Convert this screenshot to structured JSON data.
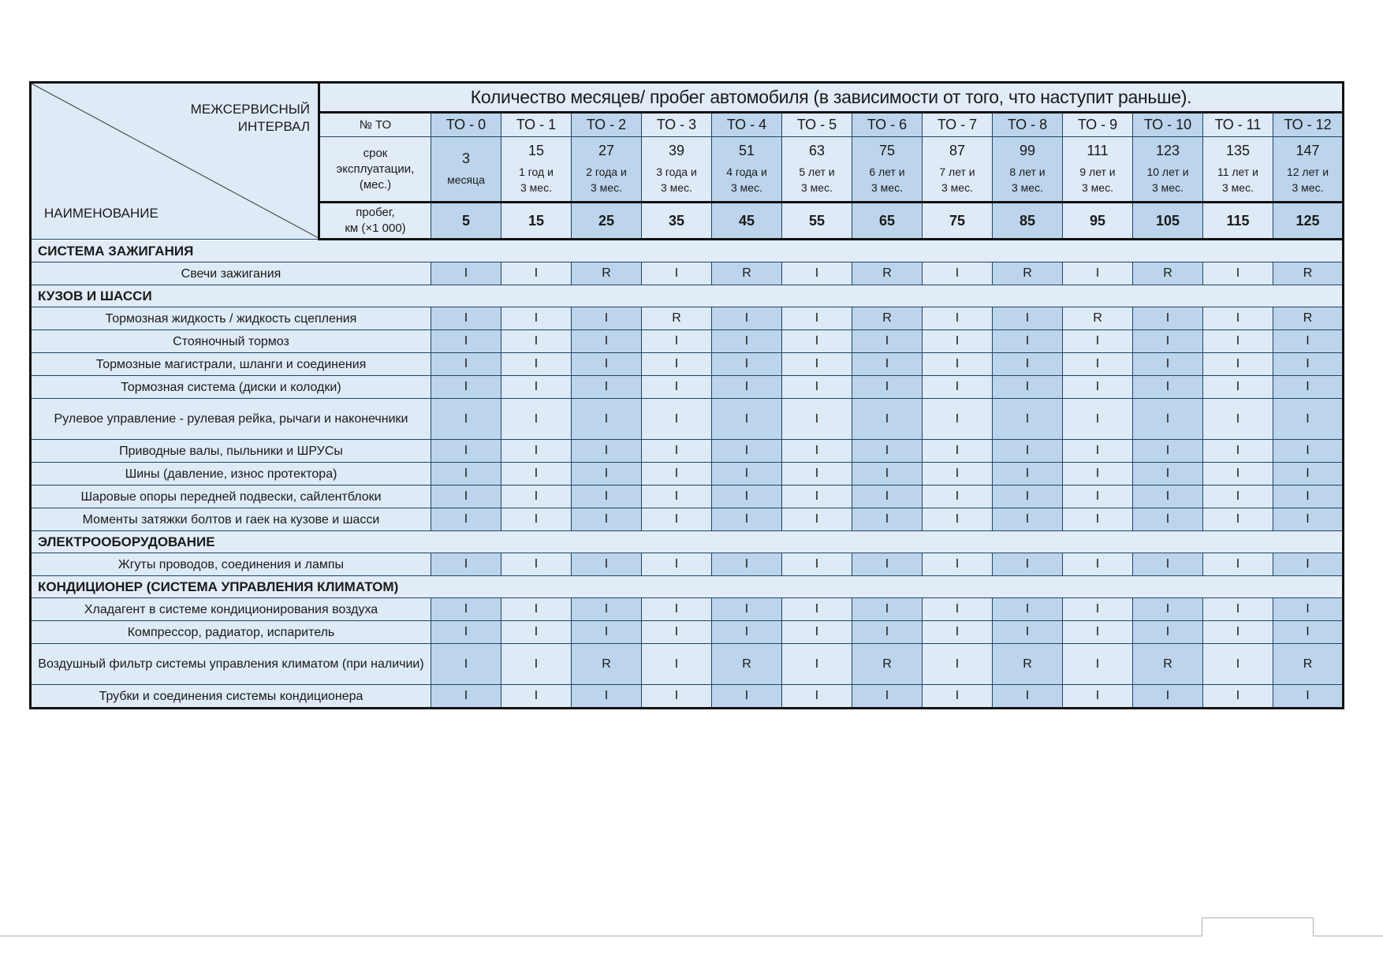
{
  "header": {
    "title": "Количество месяцев/ пробег автомобиля (в зависимости от того, что наступит раньше).",
    "interval_label": [
      "МЕЖСЕРВИСНЫЙ",
      "ИНТЕРВАЛ"
    ],
    "name_label": "НАИМЕНОВАНИЕ",
    "to_label": "№ ТО",
    "months_label": [
      "срок",
      "эксплуатации,",
      "(мес.)"
    ],
    "km_label": [
      "пробег,",
      "км (×1 000)"
    ]
  },
  "columns": [
    {
      "to": "ТО - 0",
      "months": "3",
      "months_text": [
        "месяца"
      ],
      "km": "5"
    },
    {
      "to": "ТО - 1",
      "months": "15",
      "months_text": [
        "1 год и",
        "3 мес."
      ],
      "km": "15"
    },
    {
      "to": "ТО - 2",
      "months": "27",
      "months_text": [
        "2 года и",
        "3 мес."
      ],
      "km": "25"
    },
    {
      "to": "ТО - 3",
      "months": "39",
      "months_text": [
        "3 года и",
        "3 мес."
      ],
      "km": "35"
    },
    {
      "to": "ТО - 4",
      "months": "51",
      "months_text": [
        "4 года и",
        "3 мес."
      ],
      "km": "45"
    },
    {
      "to": "ТО - 5",
      "months": "63",
      "months_text": [
        "5 лет и",
        "3 мес."
      ],
      "km": "55"
    },
    {
      "to": "ТО - 6",
      "months": "75",
      "months_text": [
        "6 лет и",
        "3 мес."
      ],
      "km": "65"
    },
    {
      "to": "ТО - 7",
      "months": "87",
      "months_text": [
        "7 лет и",
        "3 мес."
      ],
      "km": "75"
    },
    {
      "to": "ТО - 8",
      "months": "99",
      "months_text": [
        "8 лет и",
        "3 мес."
      ],
      "km": "85"
    },
    {
      "to": "ТО - 9",
      "months": "111",
      "months_text": [
        "9 лет и",
        "3 мес."
      ],
      "km": "95"
    },
    {
      "to": "ТО - 10",
      "months": "123",
      "months_text": [
        "10 лет и",
        "3 мес."
      ],
      "km": "105"
    },
    {
      "to": "ТО - 11",
      "months": "135",
      "months_text": [
        "11 лет и",
        "3 мес."
      ],
      "km": "115"
    },
    {
      "to": "ТО - 12",
      "months": "147",
      "months_text": [
        "12 лет и",
        "3 мес."
      ],
      "km": "125"
    }
  ],
  "sections": [
    {
      "title": "СИСТЕМА ЗАЖИГАНИЯ",
      "items": [
        {
          "name": "Свечи зажигания",
          "values": [
            "I",
            "I",
            "R",
            "I",
            "R",
            "I",
            "R",
            "I",
            "R",
            "I",
            "R",
            "I",
            "R"
          ]
        }
      ]
    },
    {
      "title": "КУЗОВ И ШАССИ",
      "items": [
        {
          "name": "Тормозная жидкость / жидкость сцепления",
          "values": [
            "I",
            "I",
            "I",
            "R",
            "I",
            "I",
            "R",
            "I",
            "I",
            "R",
            "I",
            "I",
            "R"
          ]
        },
        {
          "name": "Стояночный тормоз",
          "values": [
            "I",
            "I",
            "I",
            "I",
            "I",
            "I",
            "I",
            "I",
            "I",
            "I",
            "I",
            "I",
            "I"
          ]
        },
        {
          "name": "Тормозные магистрали, шланги и соединения",
          "values": [
            "I",
            "I",
            "I",
            "I",
            "I",
            "I",
            "I",
            "I",
            "I",
            "I",
            "I",
            "I",
            "I"
          ]
        },
        {
          "name": "Тормозная система (диски и колодки)",
          "values": [
            "I",
            "I",
            "I",
            "I",
            "I",
            "I",
            "I",
            "I",
            "I",
            "I",
            "I",
            "I",
            "I"
          ]
        },
        {
          "name": "Рулевое управление - рулевая рейка, рычаги и наконечники",
          "tall": true,
          "values": [
            "I",
            "I",
            "I",
            "I",
            "I",
            "I",
            "I",
            "I",
            "I",
            "I",
            "I",
            "I",
            "I"
          ]
        },
        {
          "name": "Приводные валы, пыльники и ШРУСы",
          "values": [
            "I",
            "I",
            "I",
            "I",
            "I",
            "I",
            "I",
            "I",
            "I",
            "I",
            "I",
            "I",
            "I"
          ]
        },
        {
          "name": "Шины (давление, износ протектора)",
          "values": [
            "I",
            "I",
            "I",
            "I",
            "I",
            "I",
            "I",
            "I",
            "I",
            "I",
            "I",
            "I",
            "I"
          ]
        },
        {
          "name": "Шаровые опоры передней подвески, сайлентблоки",
          "values": [
            "I",
            "I",
            "I",
            "I",
            "I",
            "I",
            "I",
            "I",
            "I",
            "I",
            "I",
            "I",
            "I"
          ]
        },
        {
          "name": "Моменты затяжки болтов и гаек на кузове и шасси",
          "values": [
            "I",
            "I",
            "I",
            "I",
            "I",
            "I",
            "I",
            "I",
            "I",
            "I",
            "I",
            "I",
            "I"
          ]
        }
      ]
    },
    {
      "title": "ЭЛЕКТРООБОРУДОВАНИЕ",
      "items": [
        {
          "name": "Жгуты проводов, соединения и лампы",
          "values": [
            "I",
            "I",
            "I",
            "I",
            "I",
            "I",
            "I",
            "I",
            "I",
            "I",
            "I",
            "I",
            "I"
          ]
        }
      ]
    },
    {
      "title": "КОНДИЦИОНЕР (СИСТЕМА УПРАВЛЕНИЯ КЛИМАТОМ)",
      "items": [
        {
          "name": "Хладагент в системе кондиционирования воздуха",
          "values": [
            "I",
            "I",
            "I",
            "I",
            "I",
            "I",
            "I",
            "I",
            "I",
            "I",
            "I",
            "I",
            "I"
          ]
        },
        {
          "name": "Компрессор, радиатор, испаритель",
          "values": [
            "I",
            "I",
            "I",
            "I",
            "I",
            "I",
            "I",
            "I",
            "I",
            "I",
            "I",
            "I",
            "I"
          ]
        },
        {
          "name": "Воздушный фильтр системы управления климатом (при наличии)",
          "tall": true,
          "values": [
            "I",
            "I",
            "R",
            "I",
            "R",
            "I",
            "R",
            "I",
            "R",
            "I",
            "R",
            "I",
            "R"
          ]
        },
        {
          "name": "Трубки и соединения системы кондиционера",
          "values": [
            "I",
            "I",
            "I",
            "I",
            "I",
            "I",
            "I",
            "I",
            "I",
            "I",
            "I",
            "I",
            "I"
          ]
        }
      ]
    }
  ],
  "colors": {
    "even_column": "#bcd5ec",
    "odd_column": "#deeaf6",
    "border": "#1f4466"
  }
}
